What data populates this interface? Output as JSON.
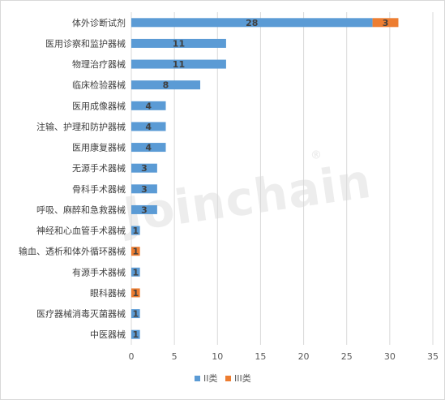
{
  "chart_data": {
    "type": "bar",
    "orientation": "horizontal",
    "stacked": true,
    "categories": [
      "体外诊断试剂",
      "医用诊察和监护器械",
      "物理治疗器械",
      "临床检验器械",
      "医用成像器械",
      "注输、护理和防护器械",
      "医用康复器械",
      "无源手术器械",
      "骨科手术器械",
      "呼吸、麻醉和急救器械",
      "神经和心血管手术器械",
      "输血、透析和体外循环器械",
      "有源手术器械",
      "眼科器械",
      "医疗器械消毒灭菌器械",
      "中医器械"
    ],
    "series": [
      {
        "name": "II类",
        "color": "#5b9bd5",
        "values": [
          28,
          11,
          11,
          8,
          4,
          4,
          4,
          3,
          3,
          3,
          1,
          0,
          1,
          0,
          1,
          1
        ]
      },
      {
        "name": "III类",
        "color": "#ed7d31",
        "values": [
          3,
          0,
          0,
          0,
          0,
          0,
          0,
          0,
          0,
          0,
          0,
          1,
          0,
          1,
          0,
          0
        ]
      }
    ],
    "xlim": [
      0,
      35
    ],
    "xticks": [
      0,
      5,
      10,
      15,
      20,
      25,
      30,
      35
    ],
    "grid": true,
    "legend_position": "bottom",
    "title": "",
    "xlabel": "",
    "ylabel": ""
  },
  "watermark": "Joinchain",
  "watermark_mark": "®",
  "colors": {
    "axis": "#d9d9d9",
    "grid": "#d9d9d9"
  }
}
